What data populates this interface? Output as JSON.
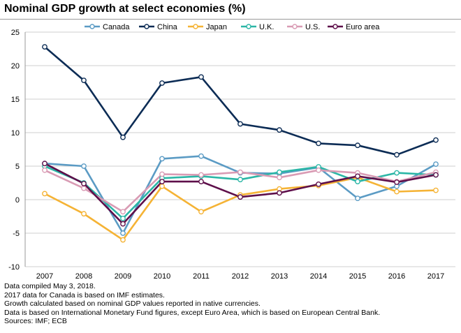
{
  "title": "Nominal GDP growth at select economies (%)",
  "notes": [
    "Data compiled May 3, 2018.",
    "2017 data for Canada is based on IMF estimates.",
    "Growth calculated based on nominal GDP values reported in native currencies.",
    "Data is based on International Monetary Fund figures, except Euro Area, which is based on European Central Bank.",
    "Sources: IMF; ECB"
  ],
  "chart_data": {
    "type": "line",
    "title": "Nominal GDP growth at select economies (%)",
    "xlabel": "",
    "ylabel": "",
    "x": [
      "2007",
      "2008",
      "2009",
      "2010",
      "2011",
      "2012",
      "2013",
      "2014",
      "2015",
      "2016",
      "2017"
    ],
    "ylim": [
      -10,
      25
    ],
    "yticks": [
      25,
      20,
      15,
      10,
      5,
      0,
      -5,
      -10
    ],
    "grid": true,
    "legend_position": "top",
    "series": [
      {
        "name": "Canada",
        "color": "#5b9bc4",
        "values": [
          5.4,
          5.0,
          -5.0,
          6.1,
          6.5,
          4.0,
          3.9,
          4.8,
          0.2,
          2.0,
          5.3
        ]
      },
      {
        "name": "China",
        "color": "#0c2c55",
        "values": [
          22.8,
          17.8,
          9.3,
          17.4,
          18.3,
          11.3,
          10.4,
          8.4,
          8.1,
          6.7,
          8.9
        ]
      },
      {
        "name": "Japan",
        "color": "#f5b335",
        "values": [
          0.9,
          -2.1,
          -6.0,
          2.0,
          -1.8,
          0.7,
          1.6,
          2.1,
          3.3,
          1.2,
          1.4
        ]
      },
      {
        "name": "U.K.",
        "color": "#2bb6a6",
        "values": [
          5.0,
          2.5,
          -2.8,
          3.2,
          3.5,
          3.0,
          4.1,
          4.9,
          2.7,
          4.0,
          3.7
        ]
      },
      {
        "name": "U.S.",
        "color": "#d99bb4",
        "values": [
          4.4,
          1.7,
          -1.8,
          3.8,
          3.7,
          4.1,
          3.3,
          4.4,
          4.0,
          2.7,
          4.1
        ]
      },
      {
        "name": "Euro area",
        "color": "#5e0f4a",
        "values": [
          5.4,
          2.4,
          -3.6,
          2.7,
          2.7,
          0.4,
          1.0,
          2.3,
          3.5,
          2.6,
          3.7
        ]
      }
    ]
  }
}
